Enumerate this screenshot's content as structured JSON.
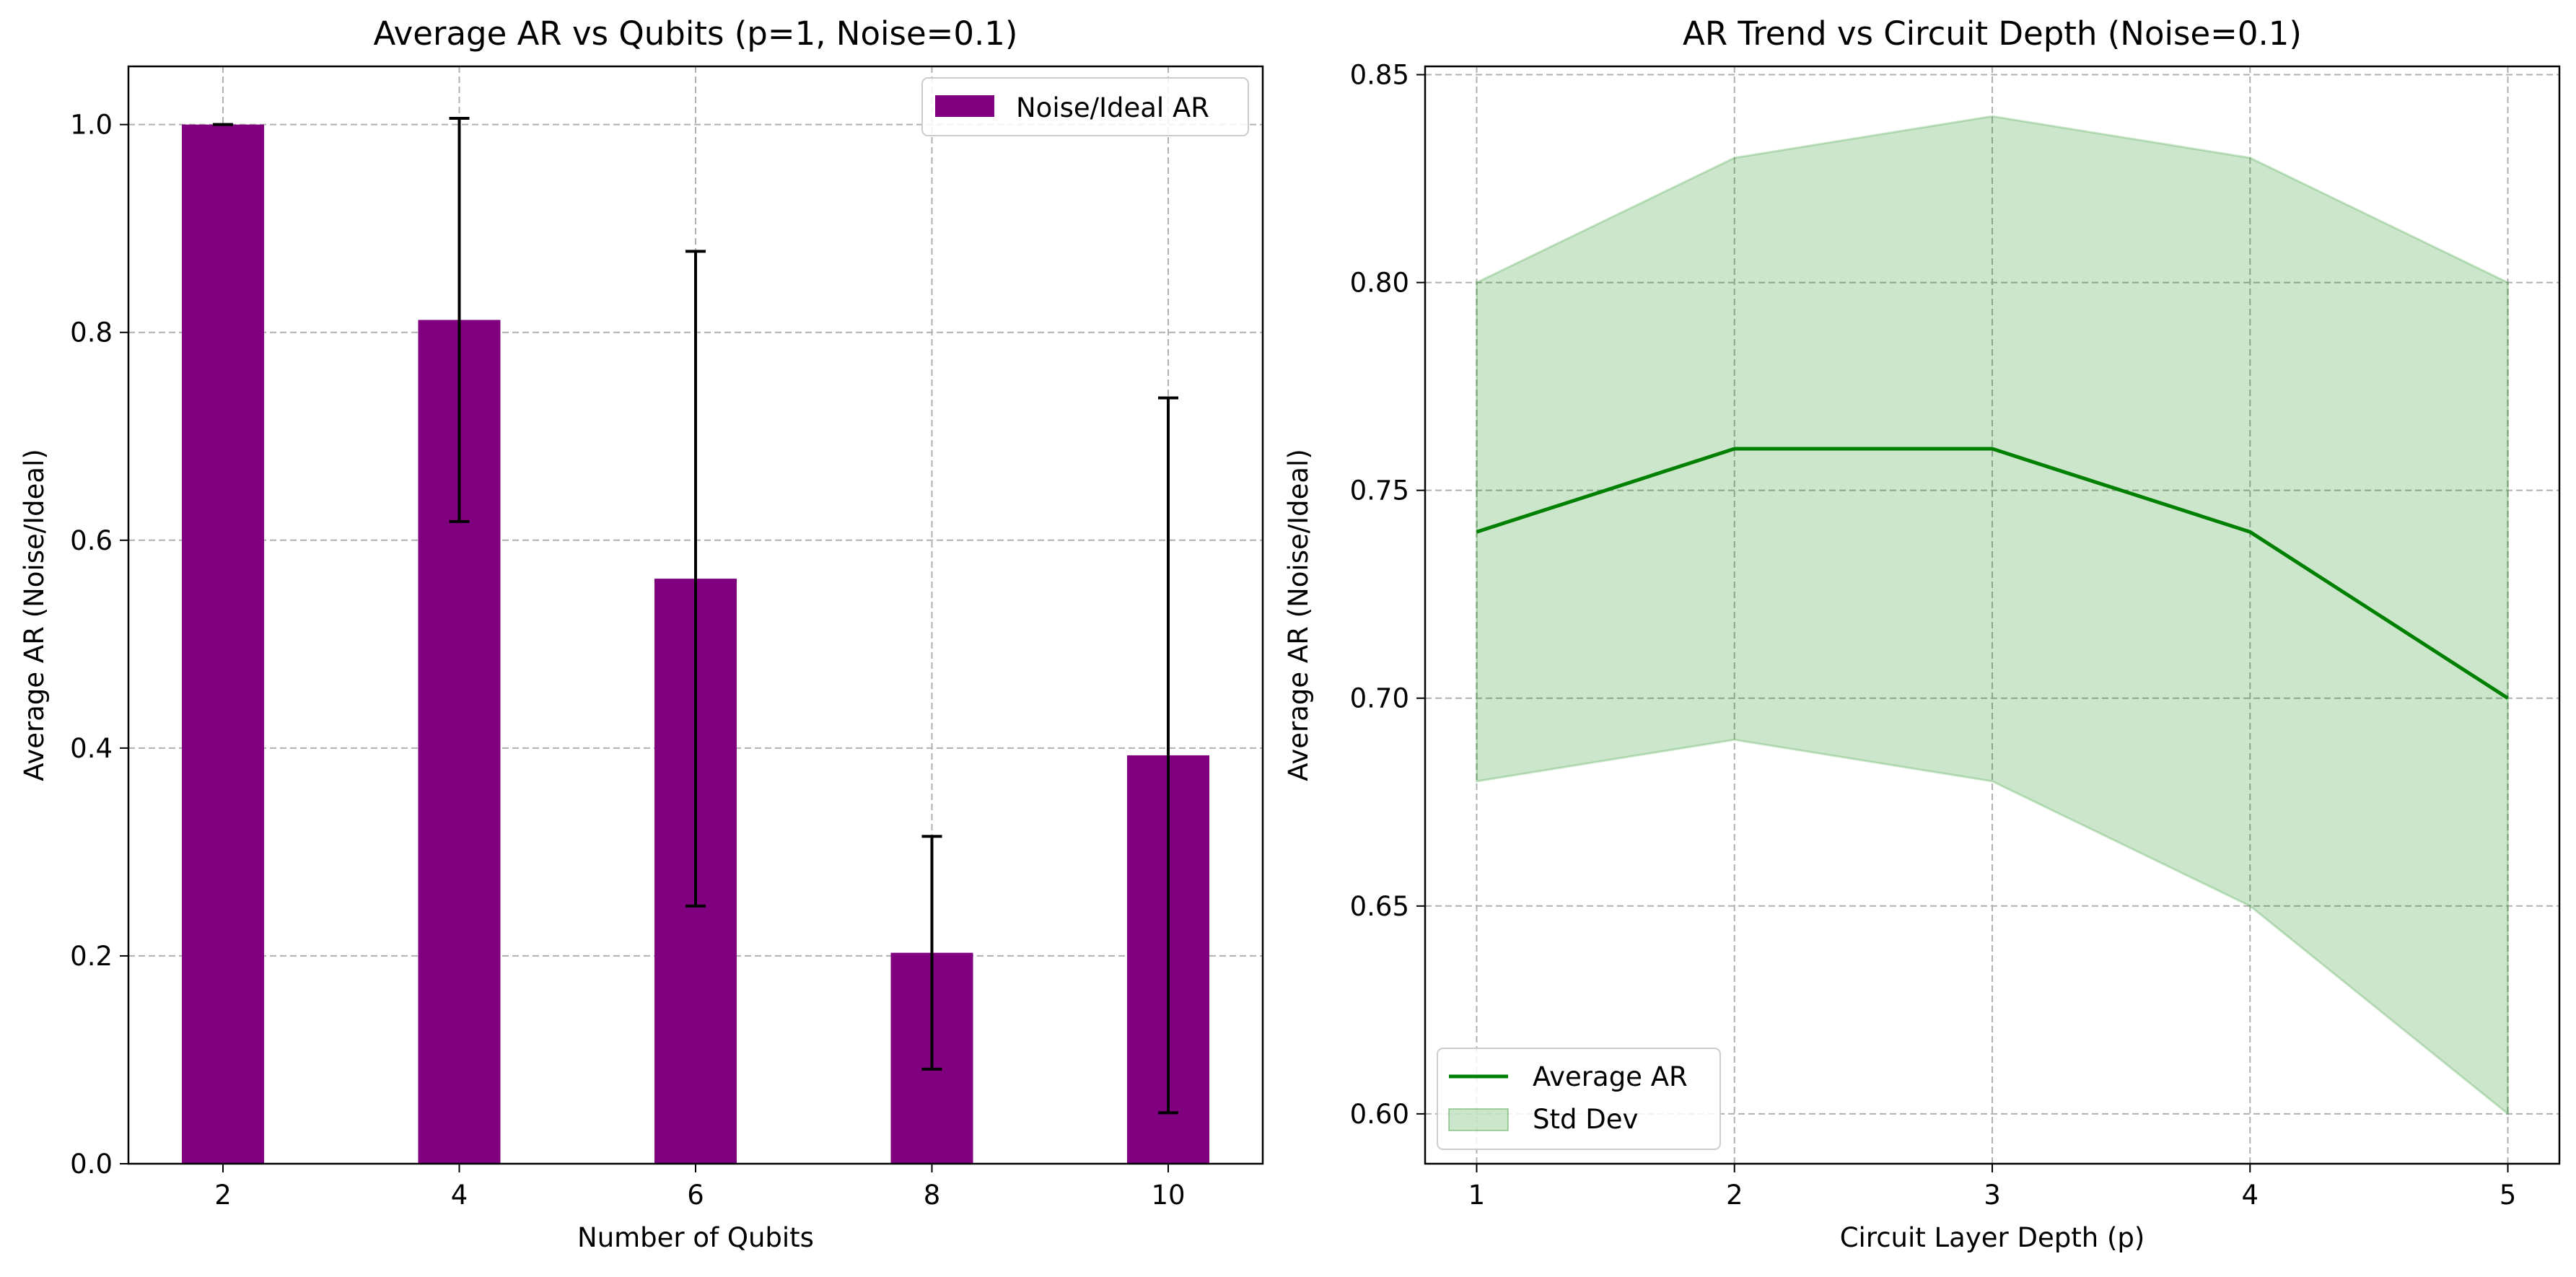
{
  "chart_data": [
    {
      "type": "bar",
      "title": "Average AR vs Qubits (p=1, Noise=0.1)",
      "xlabel": "Number of Qubits",
      "ylabel": "Average AR (Noise/Ideal)",
      "categories": [
        "2",
        "4",
        "6",
        "8",
        "10"
      ],
      "x": [
        2,
        4,
        6,
        8,
        10
      ],
      "series": [
        {
          "name": "Noise/Ideal AR",
          "values": [
            1.0,
            0.812,
            0.563,
            0.203,
            0.393
          ],
          "errors": [
            0.0,
            0.194,
            0.315,
            0.112,
            0.344
          ]
        }
      ],
      "xlim": [
        1.2,
        10.8
      ],
      "ylim": [
        0,
        1.056
      ],
      "yticks": [
        0.0,
        0.2,
        0.4,
        0.6,
        0.8,
        1.0
      ],
      "ytick_labels": [
        "0.0",
        "0.2",
        "0.4",
        "0.6",
        "0.8",
        "1.0"
      ],
      "grid": true,
      "legend": "top-right",
      "colors": {
        "bar": "#800080",
        "errorbar": "#000000",
        "grid": "#b0b0b0"
      }
    },
    {
      "type": "area",
      "title": "AR Trend vs Circuit Depth (Noise=0.1)",
      "xlabel": "Circuit Layer Depth (p)",
      "ylabel": "Average AR (Noise/Ideal)",
      "x": [
        1,
        2,
        3,
        4,
        5
      ],
      "xtick_labels": [
        "1",
        "2",
        "3",
        "4",
        "5"
      ],
      "series": [
        {
          "name": "Average AR",
          "type": "line",
          "values": [
            0.74,
            0.76,
            0.76,
            0.74,
            0.7
          ]
        },
        {
          "name": "Std Dev",
          "type": "band",
          "lower": [
            0.68,
            0.69,
            0.68,
            0.65,
            0.6
          ],
          "upper": [
            0.8,
            0.83,
            0.84,
            0.83,
            0.8
          ]
        }
      ],
      "xlim": [
        0.8,
        5.2
      ],
      "ylim": [
        0.588,
        0.852
      ],
      "yticks": [
        0.6,
        0.65,
        0.7,
        0.75,
        0.8,
        0.85
      ],
      "ytick_labels": [
        "0.60",
        "0.65",
        "0.70",
        "0.75",
        "0.80",
        "0.85"
      ],
      "grid": true,
      "legend": "bottom-left",
      "colors": {
        "line": "#008000",
        "band": "#008000",
        "grid": "#b0b0b0"
      }
    }
  ]
}
